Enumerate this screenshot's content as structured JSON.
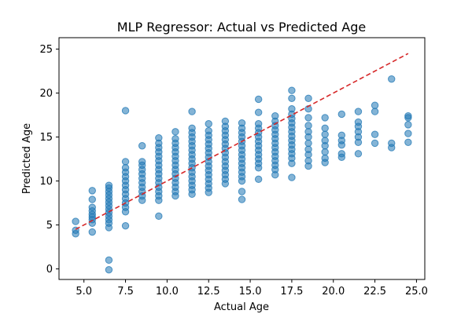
{
  "chart_data": {
    "type": "scatter",
    "title": "MLP Regressor: Actual vs Predicted Age",
    "xlabel": "Actual Age",
    "ylabel": "Predicted Age",
    "xlim": [
      3.5,
      25.5
    ],
    "ylim": [
      -1.2,
      26.3
    ],
    "xticks": [
      5.0,
      7.5,
      10.0,
      12.5,
      15.0,
      17.5,
      20.0,
      22.5,
      25.0
    ],
    "xtick_labels": [
      "5.0",
      "7.5",
      "10.0",
      "12.5",
      "15.0",
      "17.5",
      "20.0",
      "22.5",
      "25.0"
    ],
    "yticks": [
      0,
      5,
      10,
      15,
      20,
      25
    ],
    "ytick_labels": [
      "0",
      "5",
      "10",
      "15",
      "20",
      "25"
    ],
    "grid": false,
    "series": [
      {
        "marker_color": "#1f77b4",
        "marker_alpha": 0.55,
        "points": [
          [
            4.5,
            4.0
          ],
          [
            4.5,
            4.4
          ],
          [
            4.5,
            5.4
          ],
          [
            5.5,
            4.2
          ],
          [
            5.5,
            5.2
          ],
          [
            5.5,
            5.6
          ],
          [
            5.5,
            5.9
          ],
          [
            5.5,
            6.2
          ],
          [
            5.5,
            6.6
          ],
          [
            5.5,
            7.0
          ],
          [
            5.5,
            7.9
          ],
          [
            5.5,
            8.9
          ],
          [
            6.5,
            -0.1
          ],
          [
            6.5,
            1.0
          ],
          [
            6.5,
            4.7
          ],
          [
            6.5,
            5.2
          ],
          [
            6.5,
            5.6
          ],
          [
            6.5,
            6.0
          ],
          [
            6.5,
            6.4
          ],
          [
            6.5,
            6.8
          ],
          [
            6.5,
            7.2
          ],
          [
            6.5,
            7.6
          ],
          [
            6.5,
            8.0
          ],
          [
            6.5,
            8.4
          ],
          [
            6.5,
            8.8
          ],
          [
            6.5,
            9.2
          ],
          [
            6.5,
            9.5
          ],
          [
            7.5,
            4.9
          ],
          [
            7.5,
            6.5
          ],
          [
            7.5,
            7.0
          ],
          [
            7.5,
            7.5
          ],
          [
            7.5,
            8.0
          ],
          [
            7.5,
            8.5
          ],
          [
            7.5,
            9.0
          ],
          [
            7.5,
            9.5
          ],
          [
            7.5,
            10.0
          ],
          [
            7.5,
            10.5
          ],
          [
            7.5,
            11.0
          ],
          [
            7.5,
            11.5
          ],
          [
            7.5,
            12.2
          ],
          [
            7.5,
            18.0
          ],
          [
            8.5,
            7.8
          ],
          [
            8.5,
            8.3
          ],
          [
            8.5,
            8.8
          ],
          [
            8.5,
            9.3
          ],
          [
            8.5,
            9.8
          ],
          [
            8.5,
            10.3
          ],
          [
            8.5,
            10.8
          ],
          [
            8.5,
            11.3
          ],
          [
            8.5,
            11.8
          ],
          [
            8.5,
            12.2
          ],
          [
            8.5,
            14.0
          ],
          [
            9.5,
            6.0
          ],
          [
            9.5,
            7.8
          ],
          [
            9.5,
            8.3
          ],
          [
            9.5,
            8.8
          ],
          [
            9.5,
            9.3
          ],
          [
            9.5,
            9.8
          ],
          [
            9.5,
            10.3
          ],
          [
            9.5,
            10.8
          ],
          [
            9.5,
            11.3
          ],
          [
            9.5,
            11.8
          ],
          [
            9.5,
            12.3
          ],
          [
            9.5,
            12.8
          ],
          [
            9.5,
            13.3
          ],
          [
            9.5,
            13.8
          ],
          [
            9.5,
            14.3
          ],
          [
            9.5,
            14.9
          ],
          [
            10.5,
            8.3
          ],
          [
            10.5,
            8.8
          ],
          [
            10.5,
            9.3
          ],
          [
            10.5,
            9.8
          ],
          [
            10.5,
            10.3
          ],
          [
            10.5,
            10.8
          ],
          [
            10.5,
            11.3
          ],
          [
            10.5,
            11.8
          ],
          [
            10.5,
            12.3
          ],
          [
            10.5,
            12.8
          ],
          [
            10.5,
            13.3
          ],
          [
            10.5,
            13.8
          ],
          [
            10.5,
            14.3
          ],
          [
            10.5,
            14.8
          ],
          [
            10.5,
            15.6
          ],
          [
            11.5,
            8.5
          ],
          [
            11.5,
            9.0
          ],
          [
            11.5,
            9.5
          ],
          [
            11.5,
            10.0
          ],
          [
            11.5,
            10.5
          ],
          [
            11.5,
            11.0
          ],
          [
            11.5,
            11.5
          ],
          [
            11.5,
            12.0
          ],
          [
            11.5,
            12.5
          ],
          [
            11.5,
            13.0
          ],
          [
            11.5,
            13.5
          ],
          [
            11.5,
            14.0
          ],
          [
            11.5,
            14.5
          ],
          [
            11.5,
            15.0
          ],
          [
            11.5,
            15.5
          ],
          [
            11.5,
            16.0
          ],
          [
            11.5,
            17.9
          ],
          [
            12.5,
            8.7
          ],
          [
            12.5,
            9.2
          ],
          [
            12.5,
            9.7
          ],
          [
            12.5,
            10.2
          ],
          [
            12.5,
            10.7
          ],
          [
            12.5,
            11.2
          ],
          [
            12.5,
            11.7
          ],
          [
            12.5,
            12.2
          ],
          [
            12.5,
            12.7
          ],
          [
            12.5,
            13.2
          ],
          [
            12.5,
            13.7
          ],
          [
            12.5,
            14.2
          ],
          [
            12.5,
            14.7
          ],
          [
            12.5,
            15.2
          ],
          [
            12.5,
            15.7
          ],
          [
            12.5,
            16.5
          ],
          [
            13.5,
            9.7
          ],
          [
            13.5,
            10.2
          ],
          [
            13.5,
            10.7
          ],
          [
            13.5,
            11.2
          ],
          [
            13.5,
            11.7
          ],
          [
            13.5,
            12.2
          ],
          [
            13.5,
            12.7
          ],
          [
            13.5,
            13.2
          ],
          [
            13.5,
            13.7
          ],
          [
            13.5,
            14.2
          ],
          [
            13.5,
            14.7
          ],
          [
            13.5,
            15.2
          ],
          [
            13.5,
            15.7
          ],
          [
            13.5,
            16.2
          ],
          [
            13.5,
            16.8
          ],
          [
            14.5,
            7.9
          ],
          [
            14.5,
            8.8
          ],
          [
            14.5,
            10.0
          ],
          [
            14.5,
            10.5
          ],
          [
            14.5,
            11.0
          ],
          [
            14.5,
            11.5
          ],
          [
            14.5,
            12.0
          ],
          [
            14.5,
            12.5
          ],
          [
            14.5,
            13.0
          ],
          [
            14.5,
            13.5
          ],
          [
            14.5,
            14.0
          ],
          [
            14.5,
            14.5
          ],
          [
            14.5,
            15.0
          ],
          [
            14.5,
            15.5
          ],
          [
            14.5,
            16.0
          ],
          [
            14.5,
            16.6
          ],
          [
            15.5,
            10.2
          ],
          [
            15.5,
            11.5
          ],
          [
            15.5,
            12.0
          ],
          [
            15.5,
            12.5
          ],
          [
            15.5,
            13.0
          ],
          [
            15.5,
            13.5
          ],
          [
            15.5,
            14.0
          ],
          [
            15.5,
            14.5
          ],
          [
            15.5,
            15.0
          ],
          [
            15.5,
            15.5
          ],
          [
            15.5,
            16.0
          ],
          [
            15.5,
            16.5
          ],
          [
            15.5,
            17.8
          ],
          [
            15.5,
            19.3
          ],
          [
            16.5,
            10.7
          ],
          [
            16.5,
            11.3
          ],
          [
            16.5,
            11.8
          ],
          [
            16.5,
            12.3
          ],
          [
            16.5,
            12.8
          ],
          [
            16.5,
            13.3
          ],
          [
            16.5,
            13.8
          ],
          [
            16.5,
            14.3
          ],
          [
            16.5,
            14.8
          ],
          [
            16.5,
            15.3
          ],
          [
            16.5,
            15.8
          ],
          [
            16.5,
            16.3
          ],
          [
            16.5,
            16.8
          ],
          [
            16.5,
            17.4
          ],
          [
            17.5,
            10.4
          ],
          [
            17.5,
            12.0
          ],
          [
            17.5,
            12.6
          ],
          [
            17.5,
            13.1
          ],
          [
            17.5,
            13.6
          ],
          [
            17.5,
            14.1
          ],
          [
            17.5,
            14.6
          ],
          [
            17.5,
            15.1
          ],
          [
            17.5,
            15.6
          ],
          [
            17.5,
            16.1
          ],
          [
            17.5,
            16.6
          ],
          [
            17.5,
            17.1
          ],
          [
            17.5,
            17.6
          ],
          [
            17.5,
            18.2
          ],
          [
            17.5,
            19.4
          ],
          [
            17.5,
            20.3
          ],
          [
            18.5,
            11.7
          ],
          [
            18.5,
            12.3
          ],
          [
            18.5,
            13.0
          ],
          [
            18.5,
            13.6
          ],
          [
            18.5,
            14.3
          ],
          [
            18.5,
            15.0
          ],
          [
            18.5,
            15.6
          ],
          [
            18.5,
            16.3
          ],
          [
            18.5,
            17.2
          ],
          [
            18.5,
            18.2
          ],
          [
            18.5,
            19.4
          ],
          [
            19.5,
            12.1
          ],
          [
            19.5,
            12.6
          ],
          [
            19.5,
            13.3
          ],
          [
            19.5,
            14.0
          ],
          [
            19.5,
            14.6
          ],
          [
            19.5,
            15.3
          ],
          [
            19.5,
            16.0
          ],
          [
            19.5,
            17.2
          ],
          [
            20.5,
            12.7
          ],
          [
            20.5,
            13.1
          ],
          [
            20.5,
            14.1
          ],
          [
            20.5,
            14.6
          ],
          [
            20.5,
            15.2
          ],
          [
            20.5,
            17.6
          ],
          [
            21.5,
            13.1
          ],
          [
            21.5,
            14.4
          ],
          [
            21.5,
            15.0
          ],
          [
            21.5,
            15.6
          ],
          [
            21.5,
            16.2
          ],
          [
            21.5,
            16.7
          ],
          [
            21.5,
            17.9
          ],
          [
            22.5,
            14.3
          ],
          [
            22.5,
            15.3
          ],
          [
            22.5,
            17.9
          ],
          [
            22.5,
            18.6
          ],
          [
            23.5,
            13.8
          ],
          [
            23.5,
            14.3
          ],
          [
            23.5,
            21.6
          ],
          [
            24.5,
            14.4
          ],
          [
            24.5,
            15.4
          ],
          [
            24.5,
            16.4
          ],
          [
            24.5,
            17.2
          ],
          [
            24.5,
            17.4
          ]
        ]
      },
      {
        "type": "line",
        "style": "dashed",
        "color": "#d62728",
        "x": [
          4.5,
          24.5
        ],
        "y": [
          4.5,
          24.5
        ]
      }
    ]
  }
}
